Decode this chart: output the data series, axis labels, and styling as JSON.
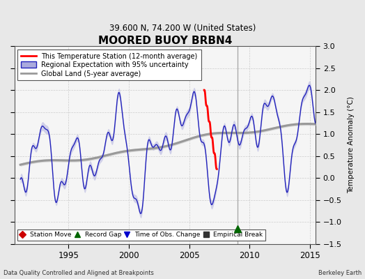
{
  "title": "MOORED BUOY BRBN4",
  "subtitle": "39.600 N, 74.200 W (United States)",
  "ylabel": "Temperature Anomaly (°C)",
  "ylim": [
    -1.5,
    3.0
  ],
  "xlim": [
    1990.5,
    2015.5
  ],
  "yticks": [
    -1.5,
    -1.0,
    -0.5,
    0.0,
    0.5,
    1.0,
    1.5,
    2.0,
    2.5,
    3.0
  ],
  "xticks": [
    1995,
    2000,
    2005,
    2010,
    2015
  ],
  "footer_left": "Data Quality Controlled and Aligned at Breakpoints",
  "footer_right": "Berkeley Earth",
  "legend1_items": [
    {
      "label": "This Temperature Station (12-month average)",
      "color": "#ff0000",
      "lw": 2.0
    },
    {
      "label": "Regional Expectation with 95% uncertainty",
      "color": "#2222bb",
      "lw": 1.5
    },
    {
      "label": "Global Land (5-year average)",
      "color": "#999999",
      "lw": 2.0
    }
  ],
  "legend2_items": [
    {
      "label": "Station Move",
      "marker": "D",
      "color": "#cc0000"
    },
    {
      "label": "Record Gap",
      "marker": "^",
      "color": "#006600"
    },
    {
      "label": "Time of Obs. Change",
      "marker": "v",
      "color": "#0000cc"
    },
    {
      "label": "Empirical Break",
      "marker": "s",
      "color": "#333333"
    }
  ],
  "vertical_line_x": 2009.0,
  "vertical_line_color": "#aaaaaa",
  "record_gap_x": 2009.0,
  "record_gap_y": -1.15,
  "bg_color": "#e8e8e8",
  "plot_bg_color": "#f5f5f5",
  "uncertainty_color": "#aaaadd",
  "uncertainty_alpha": 0.5,
  "global_uncertainty_color": "#cccccc",
  "global_uncertainty_alpha": 0.7
}
